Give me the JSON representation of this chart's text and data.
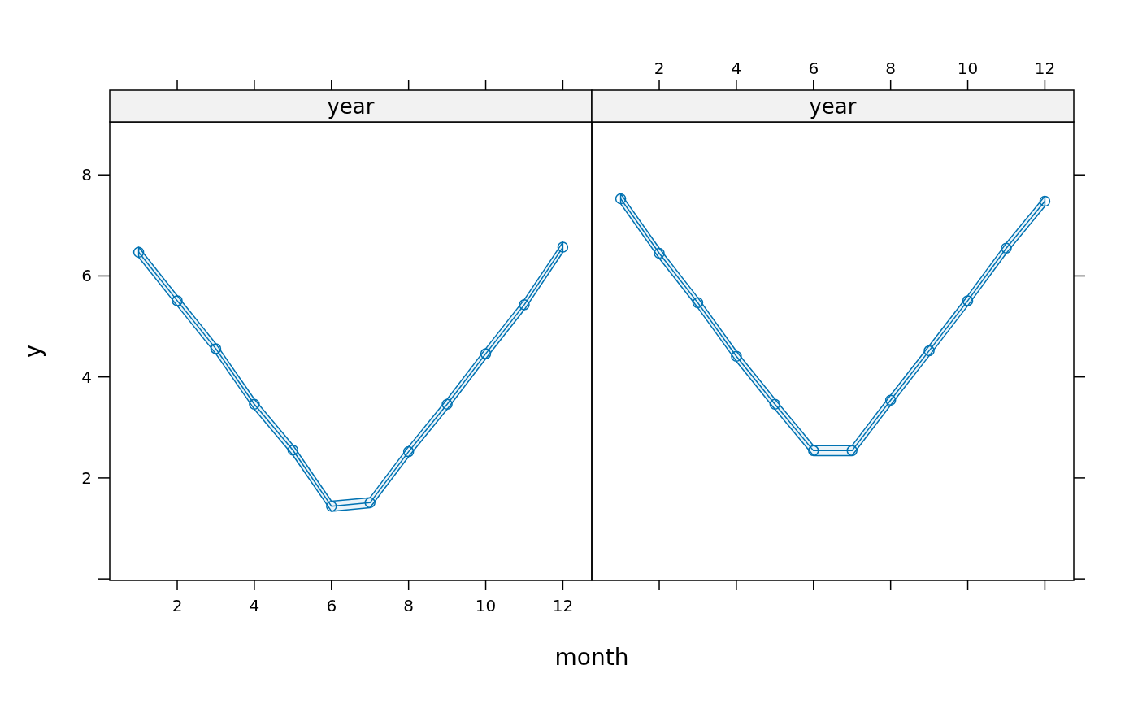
{
  "chart_data": [
    {
      "type": "line",
      "title": "year",
      "xlabel": "month",
      "ylabel": "y",
      "x": [
        1,
        2,
        3,
        4,
        5,
        6,
        7,
        8,
        9,
        10,
        11,
        12
      ],
      "xlim": [
        0.25,
        12.75
      ],
      "xticks": [
        2,
        4,
        6,
        8,
        10,
        12
      ],
      "ylim": [
        -0.03,
        9.05
      ],
      "yticks": [
        {
          "value": 0,
          "label": null
        },
        2,
        4,
        6,
        8
      ],
      "marker": "circle",
      "grid": false,
      "series": [
        {
          "color": "#0072b2",
          "values": [
            6.47,
            5.51,
            4.56,
            3.46,
            2.55,
            1.44,
            1.51,
            2.52,
            3.46,
            4.46,
            5.43,
            6.57
          ],
          "lower": [
            6.37,
            5.41,
            4.46,
            3.36,
            2.45,
            1.34,
            1.41,
            2.42,
            3.36,
            4.36,
            5.33,
            6.47
          ],
          "upper": [
            6.57,
            5.61,
            4.66,
            3.56,
            2.65,
            1.54,
            1.61,
            2.62,
            3.56,
            4.56,
            5.53,
            6.67
          ]
        }
      ]
    },
    {
      "type": "line",
      "title": "year",
      "x": [
        1,
        2,
        3,
        4,
        5,
        6,
        7,
        8,
        9,
        10,
        11,
        12
      ],
      "xlim": [
        0.25,
        12.75
      ],
      "xticks": [
        2,
        4,
        6,
        8,
        10,
        12
      ],
      "ylim": [
        -0.03,
        9.05
      ],
      "yticks": [
        {
          "value": 0,
          "label": null
        },
        2,
        4,
        6,
        8
      ],
      "tick_labels": "x",
      "marker": "circle",
      "grid": false,
      "series": [
        {
          "color": "#0072b2",
          "values": [
            7.53,
            6.45,
            5.47,
            4.41,
            3.46,
            2.54,
            2.54,
            3.54,
            4.52,
            5.51,
            6.55,
            7.48
          ],
          "lower": [
            7.43,
            6.35,
            5.37,
            4.31,
            3.36,
            2.44,
            2.44,
            3.44,
            4.42,
            5.41,
            6.45,
            7.38
          ],
          "upper": [
            7.63,
            6.55,
            5.57,
            4.51,
            3.56,
            2.64,
            2.64,
            3.64,
            4.62,
            5.61,
            6.65,
            7.58
          ]
        }
      ]
    }
  ]
}
